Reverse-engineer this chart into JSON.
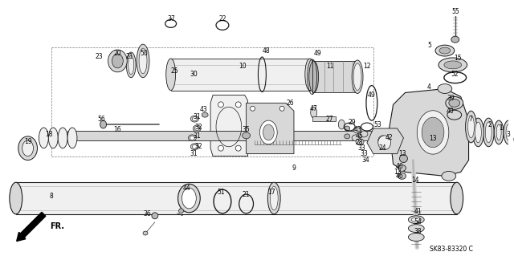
{
  "bg_color": "#ffffff",
  "lc": "#1a1a1a",
  "fig_width": 6.4,
  "fig_height": 3.19,
  "dpi": 100,
  "diagram_code": "SK83-83320 C"
}
